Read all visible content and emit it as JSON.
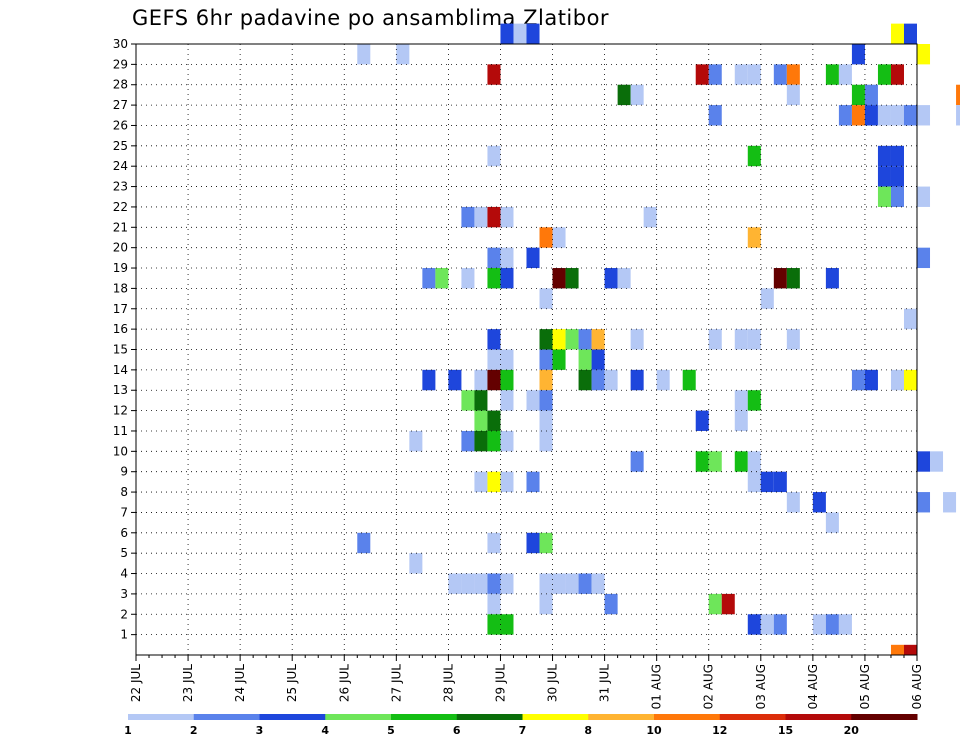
{
  "chart_data": {
    "type": "heatmap",
    "title": "GEFS 6hr padavine po ansamblima Zlatibor",
    "xlabel": "",
    "ylabel": "",
    "x_ticks": [
      "22 JUL",
      "23 JUL",
      "24 JUL",
      "25 JUL",
      "26 JUL",
      "27 JUL",
      "28 JUL",
      "29 JUL",
      "30 JUL",
      "31 JUL",
      "01 AUG",
      "02 AUG",
      "03 AUG",
      "04 AUG",
      "05 AUG",
      "06 AUG"
    ],
    "y_ticks": [
      1,
      2,
      3,
      4,
      5,
      6,
      7,
      8,
      9,
      10,
      11,
      12,
      13,
      14,
      15,
      16,
      17,
      18,
      19,
      20,
      21,
      22,
      23,
      24,
      25,
      26,
      27,
      28,
      29,
      30
    ],
    "x_range": [
      "22 JUL 00",
      "06 AUG 00"
    ],
    "y_range": [
      0,
      30
    ],
    "grid": true,
    "legend_placement": "bottom",
    "legend": {
      "labels": [
        "1",
        "2",
        "3",
        "4",
        "5",
        "6",
        "7",
        "8",
        "10",
        "12",
        "15",
        "20"
      ],
      "colors": [
        "#b4c8f5",
        "#5a82eb",
        "#1e46dc",
        "#6ee65a",
        "#14be14",
        "#0a6e0a",
        "#ffff00",
        "#ffb432",
        "#ff780a",
        "#dc2d0a",
        "#b40a0a",
        "#640000"
      ]
    },
    "cells": [
      {
        "d": "29 JUL 00",
        "m": 30,
        "c": 3
      },
      {
        "d": "29 JUL 06",
        "m": 30,
        "c": 1
      },
      {
        "d": "29 JUL 12",
        "m": 30,
        "c": 3
      },
      {
        "d": "05 AUG 12",
        "m": 30,
        "c": 7
      },
      {
        "d": "05 AUG 18",
        "m": 30,
        "c": 3
      },
      {
        "d": "26 JUL 06",
        "m": 29,
        "c": 1
      },
      {
        "d": "27 JUL 00",
        "m": 29,
        "c": 1
      },
      {
        "d": "04 AUG 18",
        "m": 29,
        "c": 3
      },
      {
        "d": "06 AUG 00",
        "m": 29,
        "c": 7
      },
      {
        "d": "28 JUL 18",
        "m": 28,
        "c": 11
      },
      {
        "d": "01 AUG 18",
        "m": 28,
        "c": 11
      },
      {
        "d": "02 AUG 00",
        "m": 28,
        "c": 2
      },
      {
        "d": "02 AUG 12",
        "m": 28,
        "c": 1
      },
      {
        "d": "02 AUG 18",
        "m": 28,
        "c": 1
      },
      {
        "d": "03 AUG 06",
        "m": 28,
        "c": 2
      },
      {
        "d": "03 AUG 12",
        "m": 28,
        "c": 9
      },
      {
        "d": "04 AUG 06",
        "m": 28,
        "c": 5
      },
      {
        "d": "04 AUG 12",
        "m": 28,
        "c": 1
      },
      {
        "d": "05 AUG 06",
        "m": 28,
        "c": 5
      },
      {
        "d": "05 AUG 12",
        "m": 28,
        "c": 11
      },
      {
        "d": "31 JUL 06",
        "m": 27,
        "c": 6
      },
      {
        "d": "31 JUL 12",
        "m": 27,
        "c": 1
      },
      {
        "d": "03 AUG 12",
        "m": 27,
        "c": 1
      },
      {
        "d": "04 AUG 18",
        "m": 27,
        "c": 5
      },
      {
        "d": "05 AUG 00",
        "m": 27,
        "c": 2
      },
      {
        "d": "06 AUG 18",
        "m": 27,
        "c": 9
      },
      {
        "d": "02 AUG 00",
        "m": 26,
        "c": 2
      },
      {
        "d": "04 AUG 12",
        "m": 26,
        "c": 2
      },
      {
        "d": "04 AUG 18",
        "m": 26,
        "c": 9
      },
      {
        "d": "05 AUG 00",
        "m": 26,
        "c": 3
      },
      {
        "d": "05 AUG 06",
        "m": 26,
        "c": 1
      },
      {
        "d": "05 AUG 12",
        "m": 26,
        "c": 1
      },
      {
        "d": "05 AUG 18",
        "m": 26,
        "c": 2
      },
      {
        "d": "06 AUG 00",
        "m": 26,
        "c": 1
      },
      {
        "d": "06 AUG 18",
        "m": 26,
        "c": 1
      },
      {
        "d": "28 JUL 18",
        "m": 24,
        "c": 1
      },
      {
        "d": "02 AUG 18",
        "m": 24,
        "c": 5
      },
      {
        "d": "05 AUG 06",
        "m": 24,
        "c": 3
      },
      {
        "d": "05 AUG 12",
        "m": 24,
        "c": 3
      },
      {
        "d": "05 AUG 06",
        "m": 23,
        "c": 3
      },
      {
        "d": "05 AUG 12",
        "m": 23,
        "c": 3
      },
      {
        "d": "05 AUG 06",
        "m": 22,
        "c": 4
      },
      {
        "d": "05 AUG 12",
        "m": 22,
        "c": 2
      },
      {
        "d": "06 AUG 00",
        "m": 22,
        "c": 1
      },
      {
        "d": "28 JUL 06",
        "m": 21,
        "c": 2
      },
      {
        "d": "28 JUL 12",
        "m": 21,
        "c": 1
      },
      {
        "d": "28 JUL 18",
        "m": 21,
        "c": 11
      },
      {
        "d": "29 JUL 00",
        "m": 21,
        "c": 1
      },
      {
        "d": "31 JUL 18",
        "m": 21,
        "c": 1
      },
      {
        "d": "29 JUL 18",
        "m": 20,
        "c": 9
      },
      {
        "d": "30 JUL 00",
        "m": 20,
        "c": 1
      },
      {
        "d": "02 AUG 18",
        "m": 20,
        "c": 8
      },
      {
        "d": "28 JUL 18",
        "m": 19,
        "c": 2
      },
      {
        "d": "29 JUL 00",
        "m": 19,
        "c": 1
      },
      {
        "d": "29 JUL 12",
        "m": 19,
        "c": 3
      },
      {
        "d": "06 AUG 00",
        "m": 19,
        "c": 2
      },
      {
        "d": "27 JUL 12",
        "m": 18,
        "c": 2
      },
      {
        "d": "27 JUL 18",
        "m": 18,
        "c": 4
      },
      {
        "d": "28 JUL 06",
        "m": 18,
        "c": 1
      },
      {
        "d": "28 JUL 18",
        "m": 18,
        "c": 5
      },
      {
        "d": "29 JUL 00",
        "m": 18,
        "c": 3
      },
      {
        "d": "30 JUL 00",
        "m": 18,
        "c": 12
      },
      {
        "d": "30 JUL 06",
        "m": 18,
        "c": 6
      },
      {
        "d": "31 JUL 00",
        "m": 18,
        "c": 3
      },
      {
        "d": "31 JUL 06",
        "m": 18,
        "c": 1
      },
      {
        "d": "03 AUG 06",
        "m": 18,
        "c": 12
      },
      {
        "d": "03 AUG 12",
        "m": 18,
        "c": 6
      },
      {
        "d": "04 AUG 06",
        "m": 18,
        "c": 3
      },
      {
        "d": "29 JUL 18",
        "m": 17,
        "c": 1
      },
      {
        "d": "03 AUG 00",
        "m": 17,
        "c": 1
      },
      {
        "d": "05 AUG 18",
        "m": 16,
        "c": 1
      },
      {
        "d": "28 JUL 18",
        "m": 15,
        "c": 3
      },
      {
        "d": "29 JUL 18",
        "m": 15,
        "c": 6
      },
      {
        "d": "30 JUL 00",
        "m": 15,
        "c": 7
      },
      {
        "d": "30 JUL 06",
        "m": 15,
        "c": 4
      },
      {
        "d": "30 JUL 12",
        "m": 15,
        "c": 2
      },
      {
        "d": "30 JUL 18",
        "m": 15,
        "c": 8
      },
      {
        "d": "31 JUL 12",
        "m": 15,
        "c": 1
      },
      {
        "d": "02 AUG 00",
        "m": 15,
        "c": 1
      },
      {
        "d": "02 AUG 12",
        "m": 15,
        "c": 1
      },
      {
        "d": "02 AUG 18",
        "m": 15,
        "c": 1
      },
      {
        "d": "03 AUG 12",
        "m": 15,
        "c": 1
      },
      {
        "d": "28 JUL 18",
        "m": 14,
        "c": 1
      },
      {
        "d": "29 JUL 00",
        "m": 14,
        "c": 1
      },
      {
        "d": "29 JUL 18",
        "m": 14,
        "c": 2
      },
      {
        "d": "30 JUL 00",
        "m": 14,
        "c": 5
      },
      {
        "d": "30 JUL 12",
        "m": 14,
        "c": 4
      },
      {
        "d": "30 JUL 18",
        "m": 14,
        "c": 3
      },
      {
        "d": "27 JUL 12",
        "m": 13,
        "c": 3
      },
      {
        "d": "28 JUL 00",
        "m": 13,
        "c": 3
      },
      {
        "d": "28 JUL 12",
        "m": 13,
        "c": 1
      },
      {
        "d": "28 JUL 18",
        "m": 13,
        "c": 12
      },
      {
        "d": "29 JUL 00",
        "m": 13,
        "c": 5
      },
      {
        "d": "29 JUL 18",
        "m": 13,
        "c": 8
      },
      {
        "d": "30 JUL 12",
        "m": 13,
        "c": 6
      },
      {
        "d": "30 JUL 18",
        "m": 13,
        "c": 2
      },
      {
        "d": "31 JUL 00",
        "m": 13,
        "c": 1
      },
      {
        "d": "31 JUL 12",
        "m": 13,
        "c": 3
      },
      {
        "d": "01 AUG 00",
        "m": 13,
        "c": 1
      },
      {
        "d": "01 AUG 12",
        "m": 13,
        "c": 5
      },
      {
        "d": "04 AUG 18",
        "m": 13,
        "c": 2
      },
      {
        "d": "05 AUG 00",
        "m": 13,
        "c": 3
      },
      {
        "d": "05 AUG 12",
        "m": 13,
        "c": 1
      },
      {
        "d": "05 AUG 18",
        "m": 13,
        "c": 7
      },
      {
        "d": "28 JUL 06",
        "m": 12,
        "c": 4
      },
      {
        "d": "28 JUL 12",
        "m": 12,
        "c": 6
      },
      {
        "d": "29 JUL 00",
        "m": 12,
        "c": 1
      },
      {
        "d": "29 JUL 12",
        "m": 12,
        "c": 1
      },
      {
        "d": "29 JUL 18",
        "m": 12,
        "c": 2
      },
      {
        "d": "02 AUG 12",
        "m": 12,
        "c": 1
      },
      {
        "d": "02 AUG 18",
        "m": 12,
        "c": 5
      },
      {
        "d": "28 JUL 12",
        "m": 11,
        "c": 4
      },
      {
        "d": "28 JUL 18",
        "m": 11,
        "c": 6
      },
      {
        "d": "29 JUL 18",
        "m": 11,
        "c": 1
      },
      {
        "d": "01 AUG 18",
        "m": 11,
        "c": 3
      },
      {
        "d": "02 AUG 12",
        "m": 11,
        "c": 1
      },
      {
        "d": "27 JUL 06",
        "m": 10,
        "c": 1
      },
      {
        "d": "28 JUL 06",
        "m": 10,
        "c": 2
      },
      {
        "d": "28 JUL 12",
        "m": 10,
        "c": 6
      },
      {
        "d": "28 JUL 18",
        "m": 10,
        "c": 5
      },
      {
        "d": "29 JUL 00",
        "m": 10,
        "c": 1
      },
      {
        "d": "29 JUL 18",
        "m": 10,
        "c": 1
      },
      {
        "d": "31 JUL 12",
        "m": 9,
        "c": 2
      },
      {
        "d": "01 AUG 18",
        "m": 9,
        "c": 5
      },
      {
        "d": "02 AUG 00",
        "m": 9,
        "c": 4
      },
      {
        "d": "02 AUG 12",
        "m": 9,
        "c": 5
      },
      {
        "d": "02 AUG 18",
        "m": 9,
        "c": 1
      },
      {
        "d": "06 AUG 00",
        "m": 9,
        "c": 3
      },
      {
        "d": "06 AUG 06",
        "m": 9,
        "c": 1
      },
      {
        "d": "28 JUL 12",
        "m": 8,
        "c": 1
      },
      {
        "d": "28 JUL 18",
        "m": 8,
        "c": 7
      },
      {
        "d": "29 JUL 00",
        "m": 8,
        "c": 1
      },
      {
        "d": "29 JUL 12",
        "m": 8,
        "c": 2
      },
      {
        "d": "02 AUG 18",
        "m": 8,
        "c": 1
      },
      {
        "d": "03 AUG 00",
        "m": 8,
        "c": 3
      },
      {
        "d": "03 AUG 06",
        "m": 8,
        "c": 3
      },
      {
        "d": "03 AUG 12",
        "m": 7,
        "c": 1
      },
      {
        "d": "04 AUG 00",
        "m": 7,
        "c": 3
      },
      {
        "d": "06 AUG 00",
        "m": 7,
        "c": 2
      },
      {
        "d": "06 AUG 12",
        "m": 7,
        "c": 1
      },
      {
        "d": "04 AUG 06",
        "m": 6,
        "c": 1
      },
      {
        "d": "26 JUL 06",
        "m": 5,
        "c": 2
      },
      {
        "d": "28 JUL 18",
        "m": 5,
        "c": 1
      },
      {
        "d": "29 JUL 12",
        "m": 5,
        "c": 3
      },
      {
        "d": "29 JUL 18",
        "m": 5,
        "c": 4
      },
      {
        "d": "27 JUL 06",
        "m": 4,
        "c": 1
      },
      {
        "d": "28 JUL 00",
        "m": 3,
        "c": 1
      },
      {
        "d": "28 JUL 06",
        "m": 3,
        "c": 1
      },
      {
        "d": "28 JUL 12",
        "m": 3,
        "c": 1
      },
      {
        "d": "28 JUL 18",
        "m": 3,
        "c": 2
      },
      {
        "d": "29 JUL 00",
        "m": 3,
        "c": 1
      },
      {
        "d": "29 JUL 18",
        "m": 3,
        "c": 1
      },
      {
        "d": "30 JUL 00",
        "m": 3,
        "c": 1
      },
      {
        "d": "30 JUL 06",
        "m": 3,
        "c": 1
      },
      {
        "d": "30 JUL 12",
        "m": 3,
        "c": 2
      },
      {
        "d": "30 JUL 18",
        "m": 3,
        "c": 1
      },
      {
        "d": "28 JUL 18",
        "m": 2,
        "c": 1
      },
      {
        "d": "29 JUL 18",
        "m": 2,
        "c": 1
      },
      {
        "d": "31 JUL 00",
        "m": 2,
        "c": 2
      },
      {
        "d": "02 AUG 00",
        "m": 2,
        "c": 4
      },
      {
        "d": "02 AUG 06",
        "m": 2,
        "c": 11
      },
      {
        "d": "28 JUL 18",
        "m": 1,
        "c": 5
      },
      {
        "d": "29 JUL 00",
        "m": 1,
        "c": 5
      },
      {
        "d": "02 AUG 18",
        "m": 1,
        "c": 3
      },
      {
        "d": "03 AUG 00",
        "m": 1,
        "c": 1
      },
      {
        "d": "03 AUG 06",
        "m": 1,
        "c": 2
      },
      {
        "d": "04 AUG 00",
        "m": 1,
        "c": 1
      },
      {
        "d": "04 AUG 06",
        "m": 1,
        "c": 2
      },
      {
        "d": "04 AUG 12",
        "m": 1,
        "c": 1
      },
      {
        "d": "05 AUG 12",
        "m": 0,
        "c": 9
      },
      {
        "d": "05 AUG 18",
        "m": 0,
        "c": 11
      }
    ]
  }
}
